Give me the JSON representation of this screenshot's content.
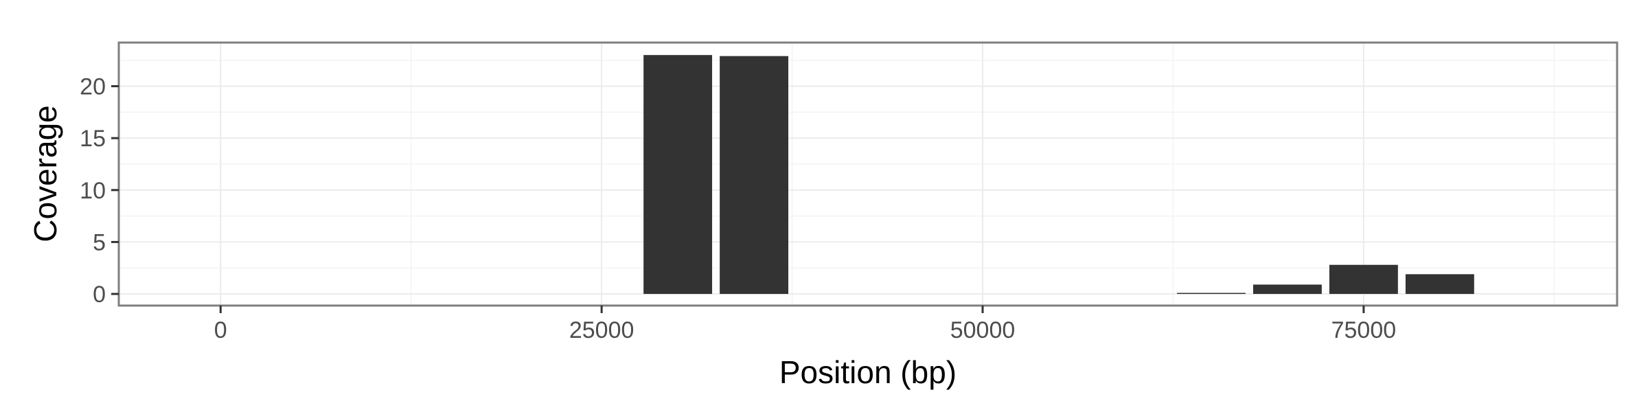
{
  "chart_data": {
    "type": "bar",
    "xlabel": "Position (bp)",
    "ylabel": "Coverage",
    "xlim": [
      -6680,
      91630
    ],
    "ylim": [
      -1.12,
      24.2
    ],
    "x_ticks": [
      0,
      25000,
      50000,
      75000
    ],
    "x_tick_labels": [
      "0",
      "25000",
      "50000",
      "75000"
    ],
    "x_minor_ticks": [
      12500,
      37500,
      62500,
      87500
    ],
    "y_ticks": [
      0,
      5,
      10,
      15,
      20
    ],
    "y_tick_labels": [
      "0",
      "5",
      "10",
      "15",
      "20"
    ],
    "y_minor_ticks": [
      2.5,
      7.5,
      12.5,
      17.5,
      22.5
    ],
    "bar_width": 4500,
    "bars": [
      {
        "x": 30000,
        "value": 23.0
      },
      {
        "x": 35000,
        "value": 22.9
      },
      {
        "x": 65000,
        "value": 0.1
      },
      {
        "x": 70000,
        "value": 0.9
      },
      {
        "x": 75000,
        "value": 2.8
      },
      {
        "x": 80000,
        "value": 1.9
      }
    ],
    "grid": true,
    "legend": "none",
    "colors": {
      "bar": "#333333",
      "panel_border": "#7f7f7f",
      "grid_major": "#ebebeb",
      "grid_minor": "#f3f3f3"
    }
  }
}
